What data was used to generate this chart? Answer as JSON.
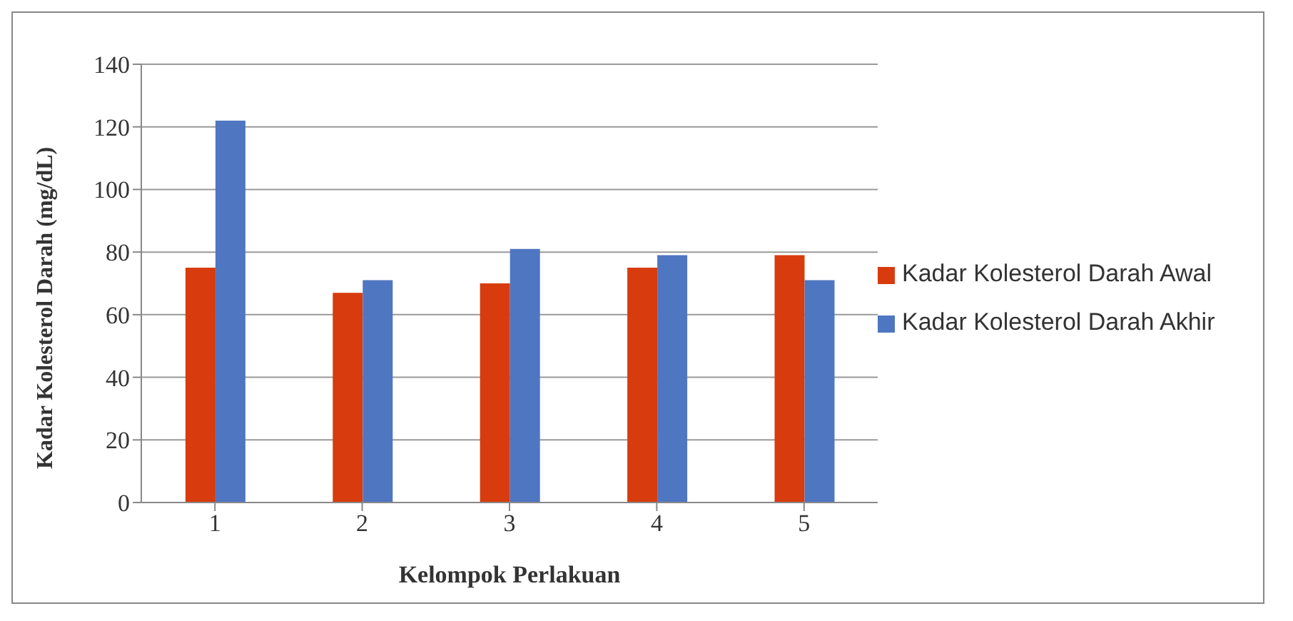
{
  "chart_data": {
    "type": "bar",
    "xlabel": "Kelompok Perlakuan",
    "ylabel": "Kadar Kolesterol Darah (mg/dL)",
    "categories": [
      "1",
      "2",
      "3",
      "4",
      "5"
    ],
    "series": [
      {
        "name": "Kadar Kolesterol Darah Awal",
        "color": "#d83b0d",
        "values": [
          75,
          67,
          70,
          75,
          79
        ]
      },
      {
        "name": "Kadar Kolesterol Darah Akhir",
        "color": "#4f76c0",
        "values": [
          122,
          71,
          81,
          79,
          71
        ]
      }
    ],
    "ylim": [
      0,
      140
    ],
    "yticks": [
      0,
      20,
      40,
      60,
      80,
      100,
      120,
      140
    ],
    "grid": "y",
    "legend": "right"
  }
}
